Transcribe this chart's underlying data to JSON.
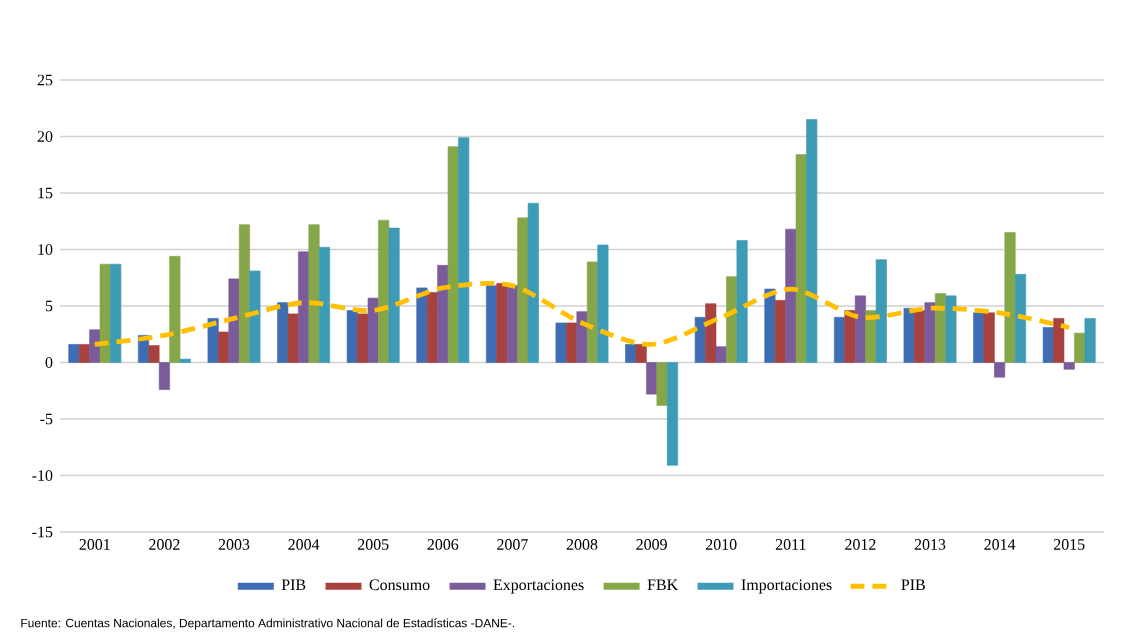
{
  "chart_data": {
    "type": "bar",
    "categories": [
      "2001",
      "2002",
      "2003",
      "2004",
      "2005",
      "2006",
      "2007",
      "2008",
      "2009",
      "2010",
      "2011",
      "2012",
      "2013",
      "2014",
      "2015"
    ],
    "series": [
      {
        "name": "PIB",
        "color": "#3e6db3",
        "values": [
          1.6,
          2.4,
          3.9,
          5.3,
          4.6,
          6.6,
          6.8,
          3.5,
          1.6,
          4.0,
          6.5,
          4.0,
          4.8,
          4.4,
          3.1
        ]
      },
      {
        "name": "Consumo",
        "color": "#a8423f",
        "values": [
          1.6,
          1.5,
          2.7,
          4.3,
          4.3,
          6.2,
          7.0,
          3.5,
          1.6,
          5.2,
          5.5,
          4.6,
          4.6,
          4.4,
          3.9
        ]
      },
      {
        "name": "Exportaciones",
        "color": "#7a5c9a",
        "values": [
          2.9,
          -2.4,
          7.4,
          9.8,
          5.7,
          8.6,
          6.8,
          4.5,
          -2.8,
          1.4,
          11.8,
          5.9,
          5.3,
          -1.3,
          -0.6
        ]
      },
      {
        "name": "FBK",
        "color": "#86a64a",
        "values": [
          8.7,
          9.4,
          12.2,
          12.2,
          12.6,
          19.1,
          12.8,
          8.9,
          -3.8,
          7.6,
          18.4,
          4.6,
          6.1,
          11.5,
          2.6
        ]
      },
      {
        "name": "Importaciones",
        "color": "#3d9bb5",
        "values": [
          8.7,
          0.3,
          8.1,
          10.2,
          11.9,
          19.9,
          14.1,
          10.4,
          -9.1,
          10.8,
          21.5,
          9.1,
          5.9,
          7.8,
          3.9
        ]
      },
      {
        "name": "PIB",
        "type": "line",
        "color": "#ffc000",
        "marker": "none",
        "line_style": "dashed",
        "values": [
          1.6,
          2.4,
          3.9,
          5.3,
          4.6,
          6.6,
          6.8,
          3.5,
          1.6,
          4.0,
          6.5,
          4.0,
          4.8,
          4.4,
          3.1
        ]
      }
    ],
    "ylim": [
      -15,
      25
    ],
    "yticks": [
      -15,
      -10,
      -5,
      0,
      5,
      10,
      15,
      20,
      25
    ],
    "grid": "y",
    "legend": "bottom",
    "annotations": [
      "Fuente: Cuentas Nacionales, Departamento Administrativo Nacional de Estadísticas -DANE-."
    ]
  }
}
